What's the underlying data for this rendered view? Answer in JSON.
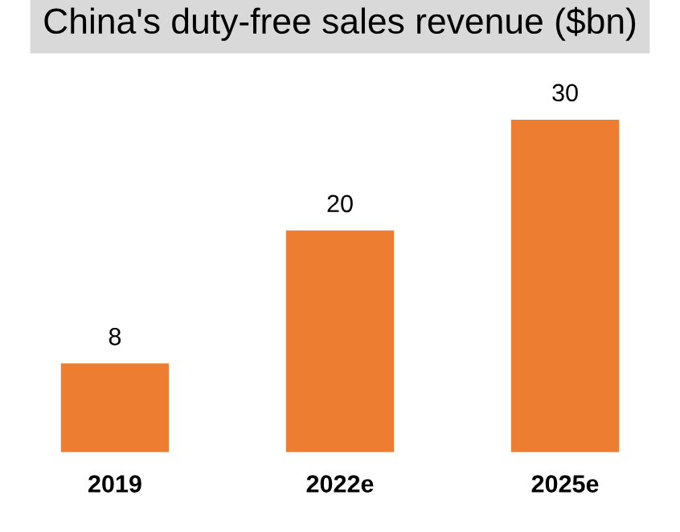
{
  "chart_data": {
    "type": "bar",
    "title": "China's duty-free sales revenue ($bn)",
    "categories": [
      "2019",
      "2022e",
      "2025e"
    ],
    "values": [
      8,
      20,
      30
    ],
    "color": "#ed7d31",
    "data_labels": true,
    "grid": false,
    "legend": false
  }
}
